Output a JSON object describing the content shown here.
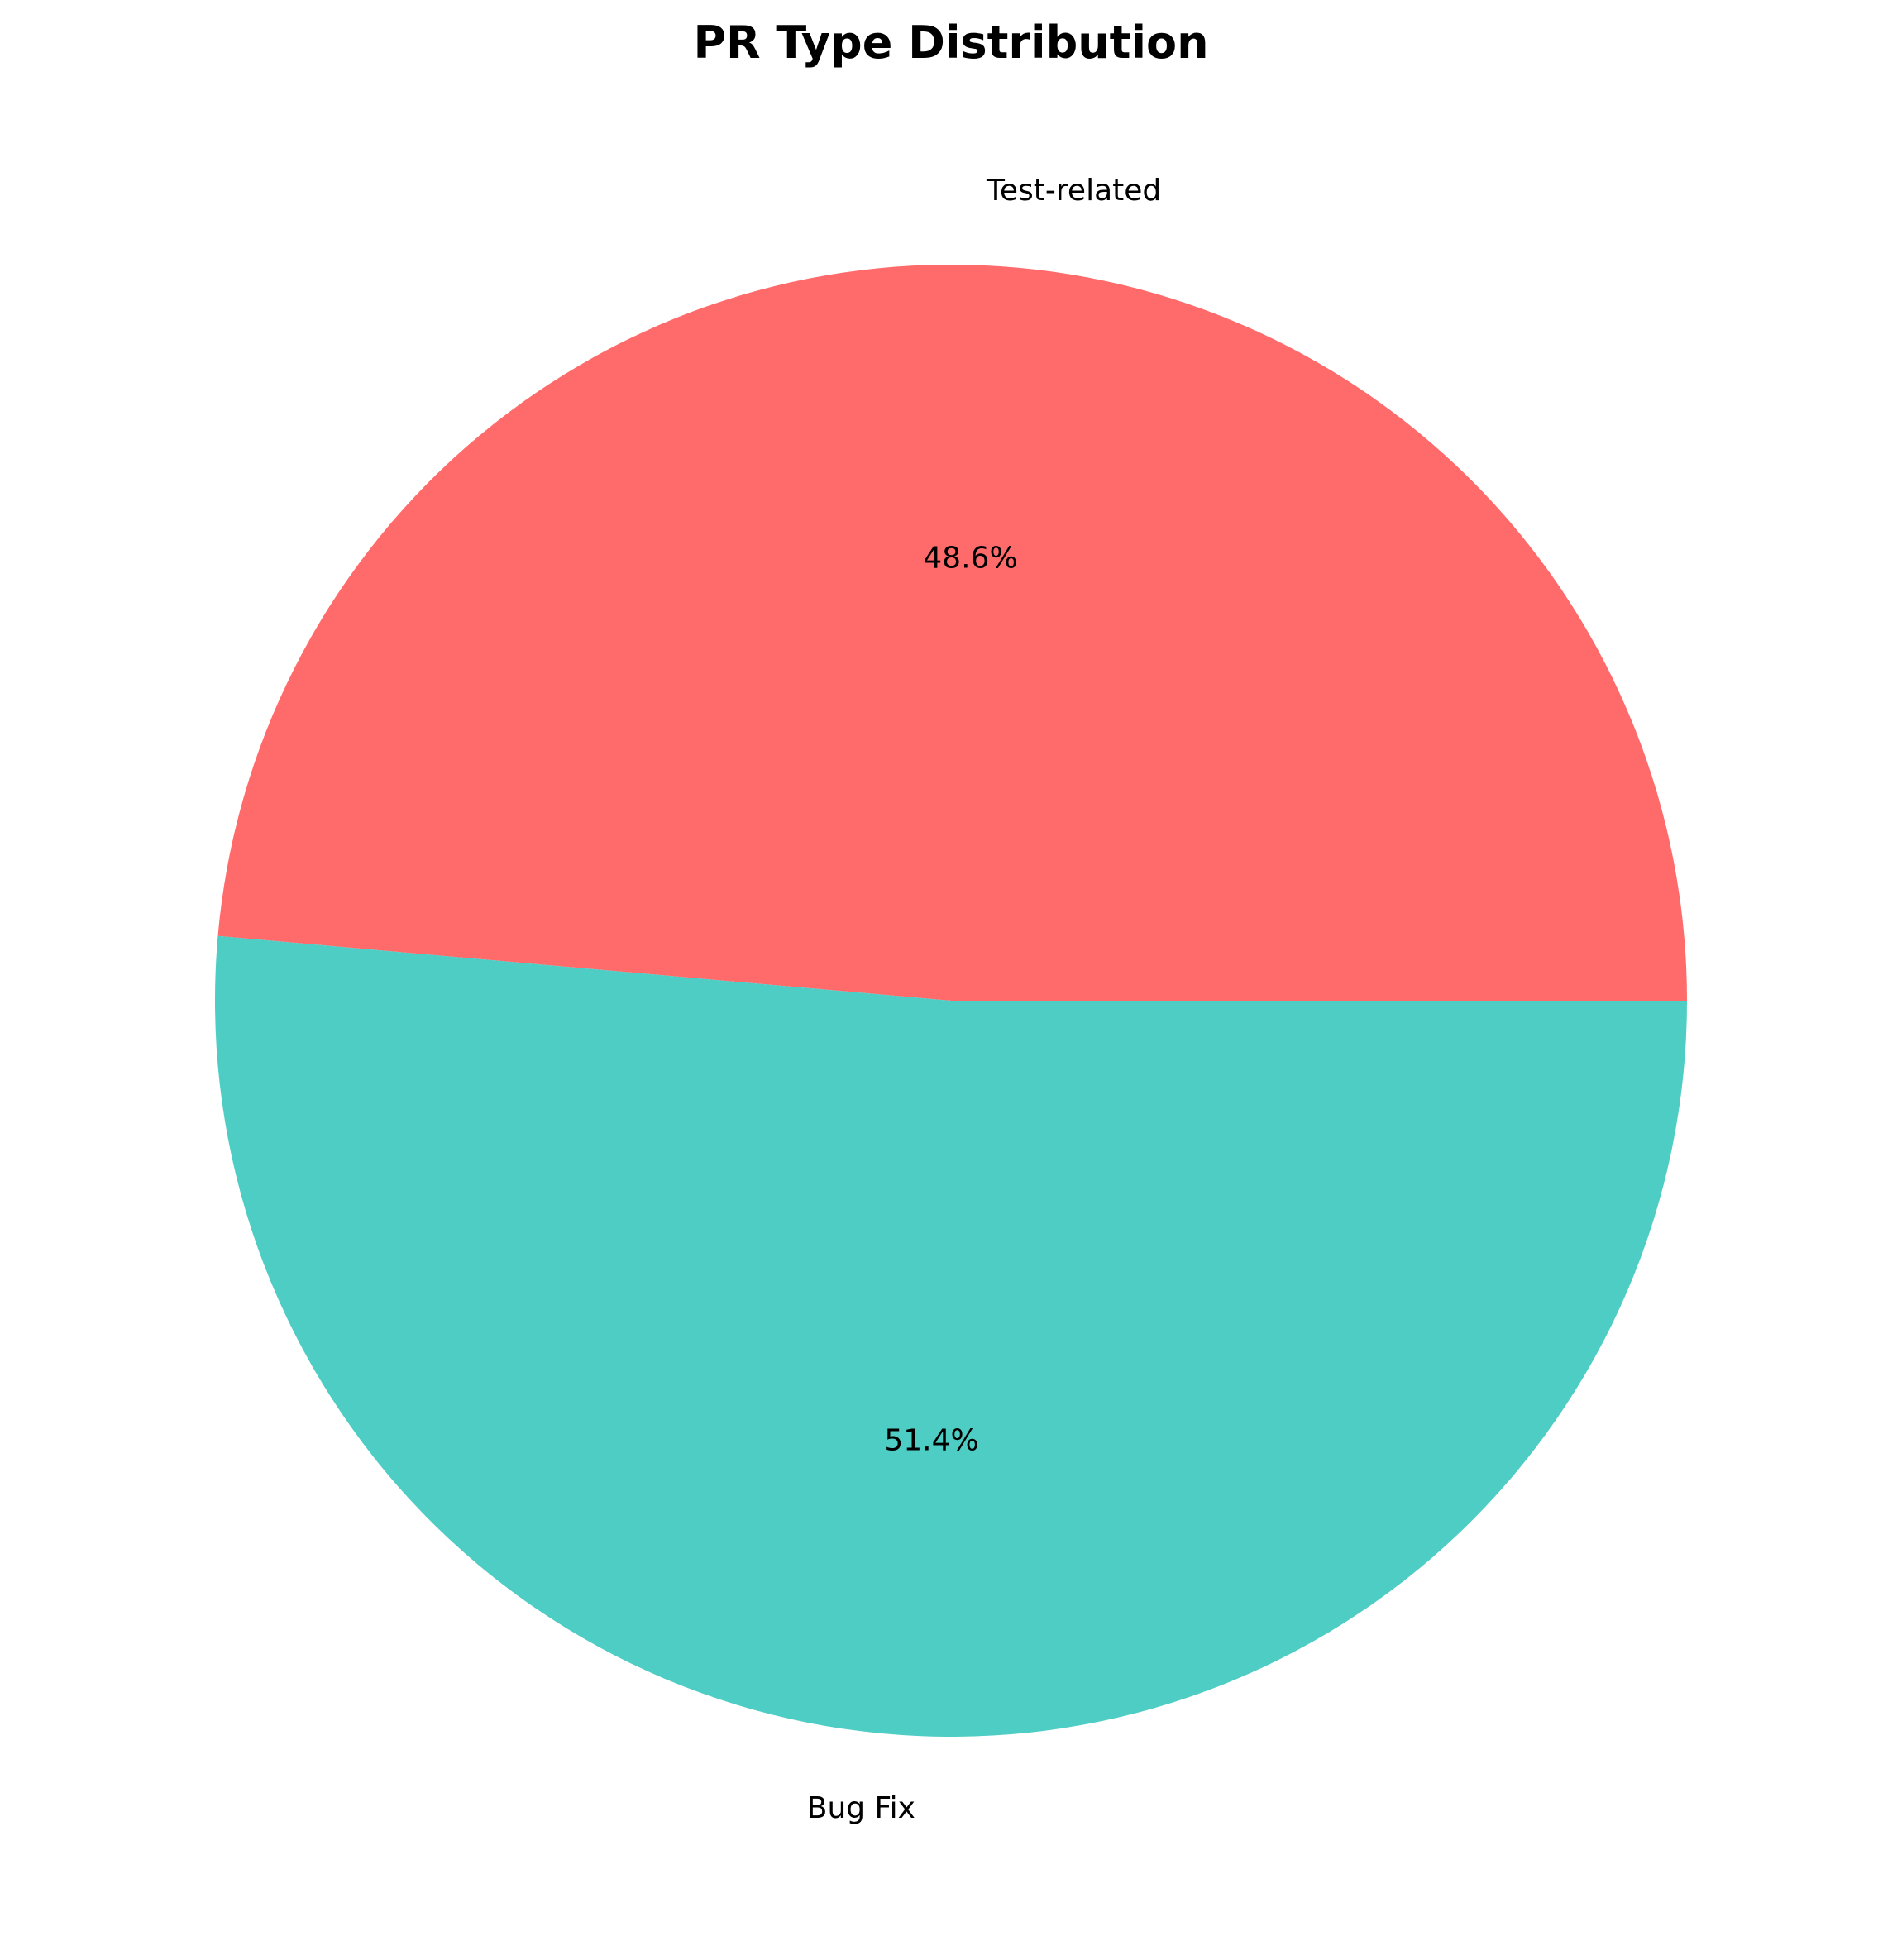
{
  "chart_data": {
    "type": "pie",
    "title": "PR Type Distribution",
    "categories": [
      "Test-related",
      "Bug Fix"
    ],
    "values": [
      48.6,
      51.4
    ],
    "percent_labels": [
      "48.6%",
      "51.4%"
    ],
    "colors": [
      "#ff6b6b",
      "#4ecdc4"
    ],
    "start_angle_deg": 0,
    "direction": "counterclockwise",
    "legend": "none"
  }
}
